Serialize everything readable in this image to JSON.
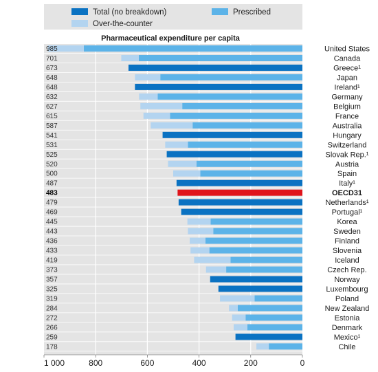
{
  "chart_data": {
    "type": "bar",
    "orientation": "horizontal-reversed",
    "title": "Pharmaceutical expenditure per capita",
    "xlim": [
      0,
      1000
    ],
    "xticks": [
      "1 000",
      "800",
      "600",
      "400",
      "200",
      "0"
    ],
    "xtick_values": [
      1000,
      800,
      600,
      400,
      200,
      0
    ],
    "grid": true,
    "legend_position": "top",
    "highlight": "OECD31",
    "legend": [
      {
        "key": "total",
        "label": "Total (no breakdown)",
        "color": "#0a72c2"
      },
      {
        "key": "prescribed",
        "label": "Prescribed",
        "color": "#5cb3e8"
      },
      {
        "key": "otc",
        "label": "Over-the-counter",
        "color": "#b3d4f0"
      }
    ],
    "highlight_color": "#e0141b",
    "countries": [
      {
        "name": "United States",
        "total": 985,
        "prescribed": 846,
        "otc": 139
      },
      {
        "name": "Canada",
        "total": 701,
        "prescribed": 633,
        "otc": 68
      },
      {
        "name": "Greece¹",
        "total": 673
      },
      {
        "name": "Japan",
        "total": 648,
        "prescribed": 550,
        "otc": 98
      },
      {
        "name": "Ireland¹",
        "total": 648
      },
      {
        "name": "Germany",
        "total": 632,
        "prescribed": 560,
        "otc": 72
      },
      {
        "name": "Belgium",
        "total": 627,
        "prescribed": 465,
        "otc": 162
      },
      {
        "name": "France",
        "total": 615,
        "prescribed": 512,
        "otc": 103
      },
      {
        "name": "Australia",
        "total": 587,
        "prescribed": 425,
        "otc": 162
      },
      {
        "name": "Hungary",
        "total": 541
      },
      {
        "name": "Switzerland",
        "total": 531,
        "prescribed": 443,
        "otc": 88
      },
      {
        "name": "Slovak Rep.¹",
        "total": 525
      },
      {
        "name": "Austria",
        "total": 520,
        "prescribed": 410,
        "otc": 110
      },
      {
        "name": "Spain",
        "total": 500,
        "prescribed": 395,
        "otc": 105
      },
      {
        "name": "Italy¹",
        "total": 487
      },
      {
        "name": "OECD31",
        "total": 483,
        "highlight": true
      },
      {
        "name": "Netherlands¹",
        "total": 479
      },
      {
        "name": "Portugal¹",
        "total": 469
      },
      {
        "name": "Korea",
        "total": 445,
        "prescribed": 355,
        "otc": 90
      },
      {
        "name": "Sweden",
        "total": 443,
        "prescribed": 345,
        "otc": 98
      },
      {
        "name": "Finland",
        "total": 436,
        "prescribed": 375,
        "otc": 61
      },
      {
        "name": "Slovenia",
        "total": 433,
        "prescribed": 360,
        "otc": 73
      },
      {
        "name": "Iceland",
        "total": 419,
        "prescribed": 278,
        "otc": 141
      },
      {
        "name": "Czech Rep.",
        "total": 373,
        "prescribed": 295,
        "otc": 78
      },
      {
        "name": "Norway",
        "total": 357
      },
      {
        "name": "Luxembourg",
        "total": 325
      },
      {
        "name": "Poland",
        "total": 319,
        "prescribed": 185,
        "otc": 134
      },
      {
        "name": "New Zealand",
        "total": 284,
        "prescribed": 250,
        "otc": 34
      },
      {
        "name": "Estonia",
        "total": 272,
        "prescribed": 220,
        "otc": 52
      },
      {
        "name": "Denmark",
        "total": 266,
        "prescribed": 213,
        "otc": 53
      },
      {
        "name": "Mexico¹",
        "total": 259
      },
      {
        "name": "Chile",
        "total": 178,
        "prescribed": 130,
        "otc": 48
      }
    ]
  }
}
